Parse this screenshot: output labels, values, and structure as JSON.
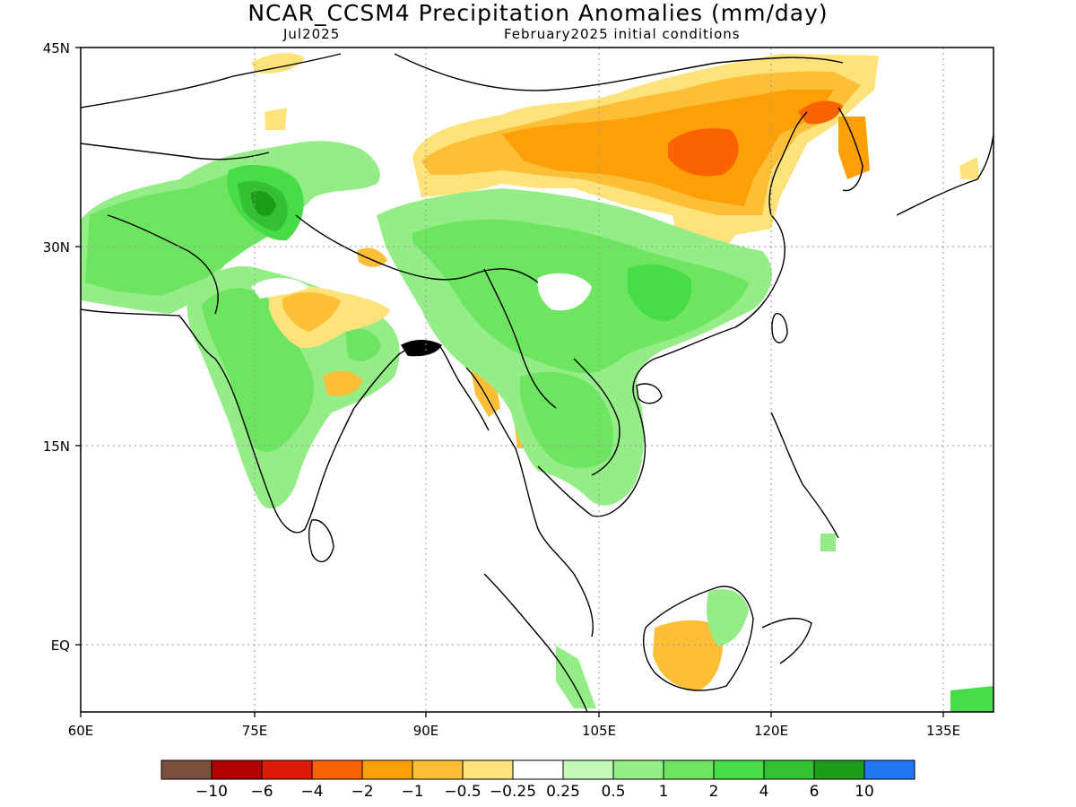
{
  "title": "NCAR_CCSM4 Precipitation Anomalies (mm/day)",
  "subtitle_left": "Jul2025",
  "subtitle_right": "February2025 initial conditions",
  "map": {
    "region": "South and East Asia",
    "lon_range": [
      60,
      140
    ],
    "lat_range": [
      -5,
      45
    ],
    "grid_lines": "dotted"
  },
  "lat_ticks": [
    "45N",
    "30N",
    "15N",
    "EQ"
  ],
  "lon_ticks": [
    "60E",
    "75E",
    "90E",
    "105E",
    "120E",
    "135E"
  ],
  "colorbar": {
    "colors": [
      "#7b4f3e",
      "#b00000",
      "#dd1a06",
      "#fb6200",
      "#fd9f07",
      "#fdbf38",
      "#fee27a",
      "#ffffff",
      "#c5f9bb",
      "#95ed88",
      "#6de561",
      "#48dd47",
      "#33c033",
      "#1c9c19",
      "#2176f2"
    ],
    "labels": [
      "−10",
      "−6",
      "−4",
      "−2",
      "−1",
      "−0.5",
      "−0.25",
      "0.25",
      "0.5",
      "1",
      "2",
      "4",
      "6",
      "10"
    ]
  }
}
